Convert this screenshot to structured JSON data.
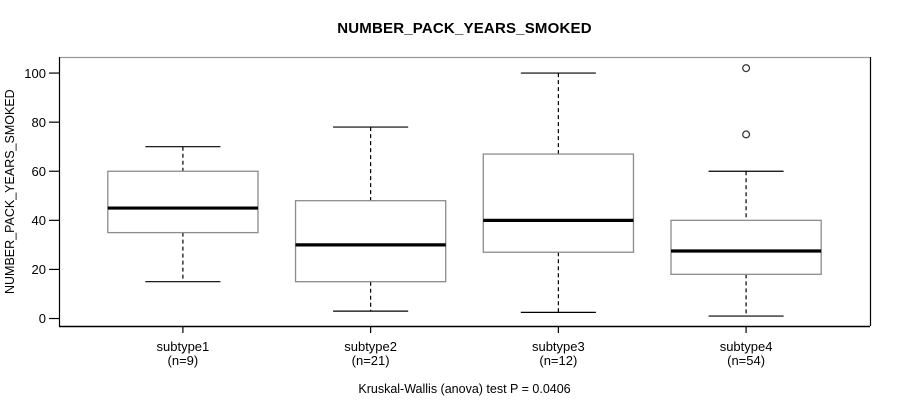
{
  "chart_data": {
    "type": "boxplot",
    "title": "NUMBER_PACK_YEARS_SMOKED",
    "ylabel": "NUMBER_PACK_YEARS_SMOKED",
    "xlabel": "",
    "footer": "Kruskal-Wallis (anova) test P = 0.0406",
    "yticks": [
      0,
      20,
      40,
      60,
      80,
      100
    ],
    "ylim": [
      -3.05,
      106.55
    ],
    "xlim": [
      0.34,
      4.66
    ],
    "box_width_units": 0.8,
    "cap_width_units": 0.4,
    "grid": false,
    "legend": null,
    "groups": [
      {
        "label": "subtype1",
        "n_label": "(n=9)",
        "n": 9,
        "position": 1,
        "whisker_low": 15,
        "q1": 35,
        "median": 45,
        "q3": 60,
        "whisker_high": 70,
        "outliers": []
      },
      {
        "label": "subtype2",
        "n_label": "(n=21)",
        "n": 21,
        "position": 2,
        "whisker_low": 3,
        "q1": 15,
        "median": 30,
        "q3": 48,
        "whisker_high": 78,
        "outliers": []
      },
      {
        "label": "subtype3",
        "n_label": "(n=12)",
        "n": 12,
        "position": 3,
        "whisker_low": 2.5,
        "q1": 27,
        "median": 40,
        "q3": 67,
        "whisker_high": 100,
        "outliers": []
      },
      {
        "label": "subtype4",
        "n_label": "(n=54)",
        "n": 54,
        "position": 4,
        "whisker_low": 1,
        "q1": 18,
        "median": 27.5,
        "q3": 40,
        "whisker_high": 60,
        "outliers": [
          75,
          102
        ]
      }
    ],
    "colors": {
      "background": "#ffffff",
      "frame": "#000000",
      "frame_top": "#999999",
      "box_border": "#8c8c8c",
      "box_fill": "#ffffff",
      "median": "#000000",
      "whisker": "#000000",
      "outlier": "#3a3a3a",
      "text": "#000000"
    }
  }
}
